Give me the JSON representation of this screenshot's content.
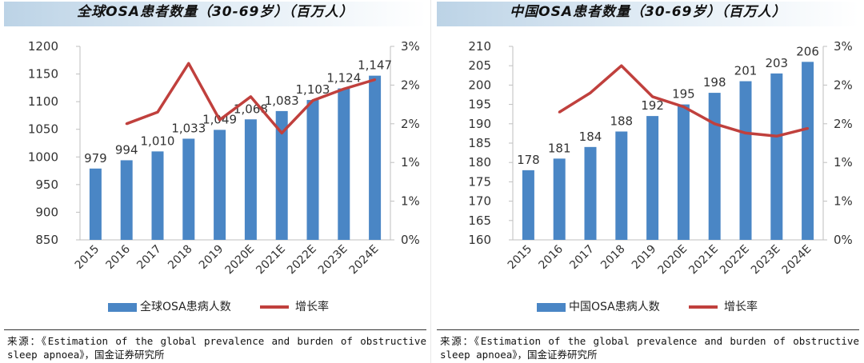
{
  "chart_data": [
    {
      "type": "bar",
      "title": "全球OSA患者数量（30-69岁）（百万人）",
      "categories": [
        "2015",
        "2016",
        "2017",
        "2018",
        "2019",
        "2020E",
        "2021E",
        "2022E",
        "2023E",
        "2024E"
      ],
      "series": [
        {
          "name": "全球OSA患病人数",
          "axis": "left",
          "type": "bar",
          "values": [
            979,
            994,
            1010,
            1033,
            1049,
            1068,
            1083,
            1103,
            1124,
            1147
          ],
          "labels": [
            "979",
            "994",
            "1,010",
            "1,033",
            "1,049",
            "1,068",
            "1,083",
            "1,103",
            "1,124",
            "1,147"
          ]
        },
        {
          "name": "增长率",
          "axis": "right",
          "type": "line",
          "values": [
            null,
            1.5,
            1.65,
            2.28,
            1.55,
            1.85,
            1.38,
            1.8,
            1.95,
            2.07
          ]
        }
      ],
      "y_left": {
        "min": 850,
        "max": 1200,
        "step": 50,
        "ticks": [
          "850",
          "900",
          "950",
          "1000",
          "1050",
          "1100",
          "1150",
          "1200"
        ]
      },
      "y_right": {
        "min": 0,
        "max": 2.5,
        "step": 0.5,
        "ticks": [
          "0%",
          "1%",
          "1%",
          "2%",
          "2%",
          "3%"
        ]
      },
      "legend": {
        "bar": "全球OSA患病人数",
        "line": "增长率"
      },
      "source": "来源：《Estimation of the global prevalence and burden of obstructive sleep apnoea》，国金证券研究所"
    },
    {
      "type": "bar",
      "title": "中国OSA患者数量（30-69岁）（百万人）",
      "categories": [
        "2015",
        "2016",
        "2017",
        "2018",
        "2019",
        "2020E",
        "2021E",
        "2022E",
        "2023E",
        "2024E"
      ],
      "series": [
        {
          "name": "中国OSA患病人数",
          "axis": "left",
          "type": "bar",
          "values": [
            178,
            181,
            184,
            188,
            192,
            195,
            198,
            201,
            203,
            206
          ],
          "labels": [
            "178",
            "181",
            "184",
            "188",
            "192",
            "195",
            "198",
            "201",
            "203",
            "206"
          ]
        },
        {
          "name": "增长率",
          "axis": "right",
          "type": "line",
          "values": [
            null,
            1.65,
            1.9,
            2.25,
            1.85,
            1.72,
            1.5,
            1.38,
            1.34,
            1.44
          ]
        }
      ],
      "y_left": {
        "min": 160,
        "max": 210,
        "step": 5,
        "ticks": [
          "160",
          "165",
          "170",
          "175",
          "180",
          "185",
          "190",
          "195",
          "200",
          "205",
          "210"
        ]
      },
      "y_right": {
        "min": 0,
        "max": 2.5,
        "step": 0.5,
        "ticks": [
          "0%",
          "1%",
          "1%",
          "2%",
          "2%",
          "3%"
        ]
      },
      "legend": {
        "bar": "中国OSA患病人数",
        "line": "增长率"
      },
      "source": "来源：《Estimation of the global prevalence and burden of obstructive sleep apnoea》，国金证券研究所"
    }
  ],
  "colors": {
    "bar": "#4a86c5",
    "line": "#c0403d",
    "axis": "#bfbfbf",
    "text": "#333333"
  }
}
